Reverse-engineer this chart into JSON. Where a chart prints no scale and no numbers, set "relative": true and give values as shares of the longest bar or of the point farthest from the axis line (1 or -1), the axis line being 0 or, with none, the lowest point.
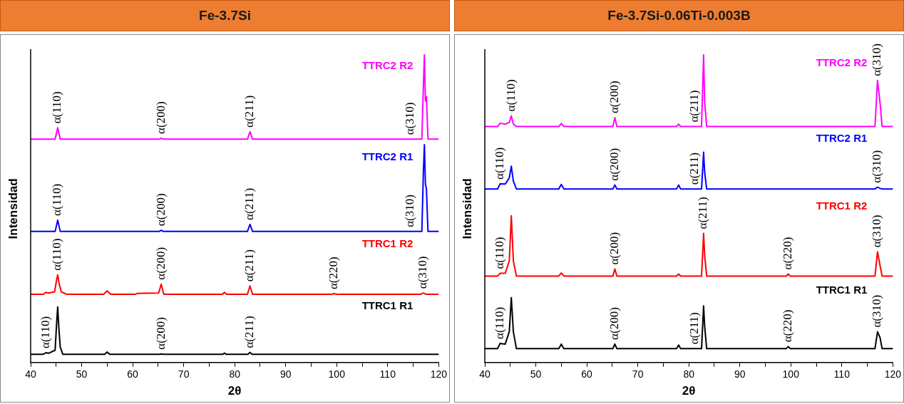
{
  "chart_data": [
    {
      "type": "line",
      "title": "Fe-3.7Si",
      "xlabel": "2θ",
      "ylabel": "Intensidad",
      "relative": true,
      "legend": false,
      "grid": false,
      "marker": "none",
      "line_style": "solid",
      "xlim": [
        40,
        120
      ],
      "xticks": [
        40,
        {
          "value": 45,
          "label": null
        },
        50,
        {
          "value": 55,
          "label": null
        },
        60,
        {
          "value": 65,
          "label": null
        },
        70,
        {
          "value": 75,
          "label": null
        },
        80,
        {
          "value": 85,
          "label": null
        },
        90,
        {
          "value": 95,
          "label": null
        },
        100,
        {
          "value": 105,
          "label": null
        },
        110,
        {
          "value": 115,
          "label": null
        },
        120
      ],
      "series": [
        {
          "name": "TTRC1 R1",
          "color": "#000000",
          "x": [
            40,
            42.5,
            43,
            43.5,
            44.8,
            45.1,
            45.3,
            45.5,
            45.8,
            46.3,
            54.5,
            55,
            55.5,
            65.2,
            65.6,
            66,
            77.7,
            78,
            78.3,
            82.6,
            83,
            83.4,
            120
          ],
          "values": [
            0.027,
            0.027,
            0.032,
            0.03,
            0.04,
            0.13,
            0.181,
            0.12,
            0.05,
            0.027,
            0.027,
            0.034,
            0.027,
            0.027,
            0.028,
            0.027,
            0.027,
            0.031,
            0.027,
            0.027,
            0.033,
            0.027,
            0.027
          ]
        },
        {
          "name": "TTRC1 R2",
          "color": "#ff0000",
          "x": [
            40,
            42.5,
            43,
            43.5,
            44.7,
            45.1,
            45.3,
            45.6,
            46,
            47,
            50.5,
            54.3,
            55,
            55.7,
            60.5,
            61,
            65.1,
            65.6,
            66.1,
            77.6,
            78,
            78.4,
            82.5,
            83,
            83.5,
            99.1,
            99.5,
            99.9,
            116.5,
            117,
            117.5,
            120
          ],
          "values": [
            0.222,
            0.222,
            0.228,
            0.226,
            0.23,
            0.27,
            0.285,
            0.255,
            0.23,
            0.222,
            0.222,
            0.222,
            0.233,
            0.222,
            0.222,
            0.225,
            0.226,
            0.255,
            0.222,
            0.222,
            0.228,
            0.222,
            0.222,
            0.249,
            0.222,
            0.222,
            0.224,
            0.222,
            0.222,
            0.226,
            0.222,
            0.222
          ]
        },
        {
          "name": "TTRC2 R1",
          "color": "#0000ff",
          "x": [
            40,
            44.8,
            45.3,
            45.8,
            65.2,
            65.6,
            66,
            82.5,
            83,
            83.5,
            114.5,
            116.7,
            117,
            117.2,
            117.4,
            117.6,
            117.9,
            120
          ],
          "values": [
            0.426,
            0.426,
            0.463,
            0.426,
            0.426,
            0.43,
            0.426,
            0.426,
            0.449,
            0.426,
            0.426,
            0.426,
            0.62,
            0.708,
            0.58,
            0.564,
            0.426,
            0.426
          ]
        },
        {
          "name": "TTRC2 R2",
          "color": "#ff00ff",
          "x": [
            40,
            44.8,
            45.3,
            45.8,
            65.2,
            65.6,
            66,
            82.5,
            83,
            83.5,
            114.5,
            116.7,
            117,
            117.2,
            117.4,
            117.6,
            117.9,
            120
          ],
          "values": [
            0.726,
            0.726,
            0.763,
            0.726,
            0.726,
            0.729,
            0.726,
            0.726,
            0.75,
            0.726,
            0.726,
            0.726,
            0.9,
            1,
            0.85,
            0.864,
            0.726,
            0.726
          ]
        }
      ],
      "annotations": [
        {
          "text": "α(110)",
          "x": 45.3,
          "y": 0.763
        },
        {
          "text": "α(200)",
          "x": 65.6,
          "y": 0.729
        },
        {
          "text": "α(211)",
          "x": 83,
          "y": 0.75
        },
        {
          "text": "α(310)",
          "x": 114.5,
          "y": 0.726
        },
        {
          "text": "α(110)",
          "x": 45.3,
          "y": 0.463
        },
        {
          "text": "α(200)",
          "x": 65.6,
          "y": 0.43
        },
        {
          "text": "α(211)",
          "x": 83,
          "y": 0.449
        },
        {
          "text": "α(310)",
          "x": 114.5,
          "y": 0.426
        },
        {
          "text": "α(110)",
          "x": 45.3,
          "y": 0.285
        },
        {
          "text": "α(200)",
          "x": 65.6,
          "y": 0.255
        },
        {
          "text": "α(211)",
          "x": 83,
          "y": 0.249
        },
        {
          "text": "α(220)",
          "x": 99.5,
          "y": 0.224
        },
        {
          "text": "α(310)",
          "x": 117,
          "y": 0.226
        },
        {
          "text": "α(110)",
          "x": 43,
          "y": 0.032
        },
        {
          "text": "α(200)",
          "x": 65.6,
          "y": 0.028
        },
        {
          "text": "α(211)",
          "x": 83,
          "y": 0.033
        }
      ]
    },
    {
      "type": "line",
      "title": "Fe-3.7Si-0.06Ti-0.003B",
      "xlabel": "2θ",
      "ylabel": "Intensidad",
      "relative": true,
      "legend": false,
      "grid": false,
      "marker": "none",
      "line_style": "solid",
      "xlim": [
        40,
        120
      ],
      "xticks": [
        40,
        {
          "value": 45,
          "label": null
        },
        50,
        {
          "value": 55,
          "label": null
        },
        60,
        {
          "value": 65,
          "label": null
        },
        70,
        {
          "value": 75,
          "label": null
        },
        80,
        {
          "value": 85,
          "label": null
        },
        90,
        {
          "value": 95,
          "label": null
        },
        100,
        {
          "value": 105,
          "label": null
        },
        110,
        {
          "value": 115,
          "label": null
        },
        120
      ],
      "x": [
        40,
        42.5,
        43,
        44,
        44.8,
        45.2,
        45.6,
        46.2,
        54.5,
        55,
        55.5,
        65.1,
        65.5,
        65.9,
        77.6,
        78,
        78.4,
        81.2,
        82.5,
        82.9,
        83.1,
        83.5,
        99.1,
        99.5,
        99.9,
        116.5,
        117,
        117.5,
        117.9,
        120
      ],
      "series": [
        {
          "name": "TTRC1 R1",
          "color": "#000000",
          "values": [
            0.045,
            0.045,
            0.062,
            0.06,
            0.1,
            0.211,
            0.1,
            0.045,
            0.045,
            0.06,
            0.045,
            0.045,
            0.06,
            0.045,
            0.045,
            0.057,
            0.045,
            0.045,
            0.045,
            0.184,
            0.12,
            0.045,
            0.045,
            0.052,
            0.045,
            0.045,
            0.1,
            0.081,
            0.045,
            0.045
          ]
        },
        {
          "name": "TTRC1 R2",
          "color": "#ff0000",
          "values": [
            0.281,
            0.281,
            0.29,
            0.29,
            0.33,
            0.477,
            0.33,
            0.281,
            0.281,
            0.291,
            0.281,
            0.281,
            0.304,
            0.281,
            0.281,
            0.288,
            0.281,
            0.281,
            0.281,
            0.42,
            0.35,
            0.281,
            0.281,
            0.288,
            0.281,
            0.281,
            0.36,
            0.315,
            0.281,
            0.281
          ]
        },
        {
          "name": "TTRC2 R1",
          "color": "#0000ff",
          "values": [
            0.564,
            0.564,
            0.581,
            0.58,
            0.6,
            0.638,
            0.59,
            0.564,
            0.564,
            0.579,
            0.564,
            0.564,
            0.577,
            0.564,
            0.564,
            0.577,
            0.564,
            0.564,
            0.564,
            0.684,
            0.62,
            0.564,
            0.564,
            0.564,
            0.564,
            0.564,
            0.57,
            0.566,
            0.564,
            0.564
          ]
        },
        {
          "name": "TTRC2 R2",
          "color": "#ff00ff",
          "values": [
            0.767,
            0.767,
            0.778,
            0.775,
            0.78,
            0.802,
            0.775,
            0.767,
            0.767,
            0.777,
            0.767,
            0.767,
            0.796,
            0.767,
            0.767,
            0.775,
            0.767,
            0.767,
            0.767,
            1,
            0.85,
            0.767,
            0.767,
            0.767,
            0.767,
            0.767,
            0.917,
            0.844,
            0.767,
            0.767
          ]
        }
      ],
      "annotations": [
        {
          "text": "α(110)",
          "x": 45.2,
          "y": 0.802
        },
        {
          "text": "α(200)",
          "x": 65.5,
          "y": 0.796
        },
        {
          "text": "α(211)",
          "x": 81.2,
          "y": 0.767
        },
        {
          "text": "α(310)",
          "x": 117,
          "y": 0.917
        },
        {
          "text": "α(110)",
          "x": 43,
          "y": 0.581
        },
        {
          "text": "α(200)",
          "x": 65.5,
          "y": 0.577
        },
        {
          "text": "α(211)",
          "x": 81.2,
          "y": 0.564
        },
        {
          "text": "α(310)",
          "x": 117,
          "y": 0.57
        },
        {
          "text": "α(110)",
          "x": 43,
          "y": 0.29
        },
        {
          "text": "α(200)",
          "x": 65.5,
          "y": 0.304
        },
        {
          "text": "α(211)",
          "x": 82.9,
          "y": 0.42
        },
        {
          "text": "α(220)",
          "x": 99.5,
          "y": 0.288
        },
        {
          "text": "α(310)",
          "x": 117,
          "y": 0.36
        },
        {
          "text": "α(110)",
          "x": 43,
          "y": 0.062
        },
        {
          "text": "α(200)",
          "x": 65.5,
          "y": 0.06
        },
        {
          "text": "α(211)",
          "x": 81.2,
          "y": 0.045
        },
        {
          "text": "α(220)",
          "x": 99.5,
          "y": 0.052
        },
        {
          "text": "α(310)",
          "x": 117,
          "y": 0.1
        }
      ]
    }
  ]
}
